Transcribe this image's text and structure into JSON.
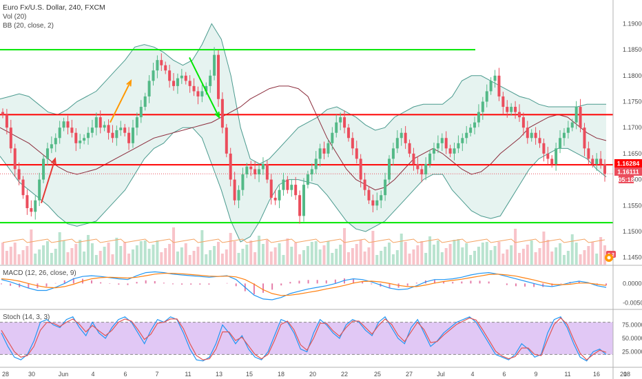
{
  "header": {
    "title": "Euro Fx/U.S. Dollar, 240, FXCM",
    "vol": "Vol (20)",
    "bb": "BB (20, close, 2)"
  },
  "macd_label": "MACD (12, 26, close, 9)",
  "stoch_label": "Stoch (14, 3, 3)",
  "price_tags": {
    "upper": "1.16284",
    "lower": "1.16111",
    "countdown": "05:18",
    "volume": "5.2"
  },
  "colors": {
    "up": "#53b987",
    "down": "#eb4d5c",
    "bb": "#4a9a8e",
    "bb_fill": "#e3f2ee",
    "basis": "#8b2c3c",
    "hline_red": "#ff0000",
    "hline_green": "#00e600",
    "macd": "#2196f3",
    "signal": "#ff7f0e",
    "stoch_fill": "#e1c8f5",
    "stoch_k": "#2196f3",
    "stoch_d": "#e05555"
  },
  "chart_data": [
    {
      "type": "candlestick",
      "title": "Euro Fx/U.S. Dollar, 240, FXCM",
      "y_ticks": [
        "1.19000",
        "1.18500",
        "1.18000",
        "1.17500",
        "1.17000",
        "1.16500",
        "1.16000",
        "1.15500",
        "1.15000",
        "1.14500"
      ],
      "ylim": [
        1.1435,
        1.1935
      ],
      "x_ticks": [
        "28",
        "30",
        "Jun",
        "4",
        "6",
        "7",
        "11",
        "13",
        "15",
        "18",
        "20",
        "22",
        "25",
        "27",
        "Jul",
        "4",
        "6",
        "9",
        "11",
        "16",
        "18",
        "20"
      ],
      "close": [
        1.1725,
        1.17,
        1.166,
        1.162,
        1.16,
        1.157,
        1.1545,
        1.1538,
        1.156,
        1.16,
        1.164,
        1.166,
        1.1668,
        1.168,
        1.17,
        1.1712,
        1.17,
        1.169,
        1.167,
        1.1675,
        1.168,
        1.169,
        1.17,
        1.172,
        1.17,
        1.1705,
        1.169,
        1.168,
        1.1695,
        1.17,
        1.169,
        1.167,
        1.17,
        1.172,
        1.174,
        1.176,
        1.179,
        1.181,
        1.183,
        1.182,
        1.181,
        1.179,
        1.178,
        1.1795,
        1.18,
        1.179,
        1.178,
        1.177,
        1.176,
        1.177,
        1.178,
        1.18,
        1.184,
        1.1755,
        1.17,
        1.165,
        1.16,
        1.156,
        1.158,
        1.161,
        1.1625,
        1.162,
        1.161,
        1.162,
        1.163,
        1.16,
        1.1565,
        1.156,
        1.158,
        1.16,
        1.158,
        1.159,
        1.157,
        1.153,
        1.159,
        1.161,
        1.162,
        1.164,
        1.166,
        1.165,
        1.167,
        1.169,
        1.171,
        1.172,
        1.17,
        1.168,
        1.166,
        1.164,
        1.16,
        1.158,
        1.156,
        1.155,
        1.156,
        1.157,
        1.16,
        1.164,
        1.166,
        1.168,
        1.169,
        1.167,
        1.165,
        1.163,
        1.162,
        1.161,
        1.163,
        1.165,
        1.166,
        1.167,
        1.168,
        1.166,
        1.165,
        1.166,
        1.167,
        1.168,
        1.169,
        1.17,
        1.171,
        1.173,
        1.175,
        1.177,
        1.179,
        1.18,
        1.176,
        1.174,
        1.173,
        1.174,
        1.173,
        1.172,
        1.17,
        1.168,
        1.169,
        1.168,
        1.167,
        1.165,
        1.164,
        1.163,
        1.166,
        1.168,
        1.169,
        1.17,
        1.171,
        1.174,
        1.17,
        1.166,
        1.164,
        1.163,
        1.164,
        1.163,
        1.1611
      ],
      "bb_mid": [
        1.17,
        1.169,
        1.168,
        1.167,
        1.1655,
        1.164,
        1.1625,
        1.1615,
        1.161,
        1.1615,
        1.162,
        1.163,
        1.164,
        1.165,
        1.166,
        1.167,
        1.168,
        1.1685,
        1.169,
        1.1695,
        1.17,
        1.1705,
        1.171,
        1.172,
        1.173,
        1.174,
        1.1755,
        1.1765,
        1.1775,
        1.178,
        1.178,
        1.1775,
        1.176,
        1.172,
        1.168,
        1.165,
        1.162,
        1.16,
        1.159,
        1.158,
        1.1585,
        1.16,
        1.162,
        1.164,
        1.165,
        1.166,
        1.165,
        1.1635,
        1.162,
        1.161,
        1.1615,
        1.163,
        1.165,
        1.1665,
        1.168,
        1.17,
        1.171,
        1.172,
        1.1725,
        1.172,
        1.1705,
        1.169,
        1.168,
        1.1675
      ],
      "bb_upper": [
        1.1755,
        1.176,
        1.1765,
        1.176,
        1.1745,
        1.173,
        1.1725,
        1.1735,
        1.175,
        1.176,
        1.177,
        1.179,
        1.181,
        1.183,
        1.1855,
        1.186,
        1.1855,
        1.1845,
        1.183,
        1.182,
        1.183,
        1.186,
        1.19,
        1.187,
        1.18,
        1.17,
        1.164,
        1.163,
        1.164,
        1.166,
        1.168,
        1.17,
        1.171,
        1.172,
        1.1735,
        1.174,
        1.173,
        1.172,
        1.1705,
        1.1695,
        1.17,
        1.172,
        1.173,
        1.174,
        1.1745,
        1.1745,
        1.1745,
        1.176,
        1.179,
        1.18,
        1.18,
        1.179,
        1.178,
        1.177,
        1.176,
        1.1755,
        1.1745,
        1.174,
        1.174,
        1.174,
        1.174,
        1.1745,
        1.1745,
        1.1745
      ],
      "bb_lower": [
        1.1645,
        1.162,
        1.1595,
        1.158,
        1.1565,
        1.155,
        1.153,
        1.1515,
        1.151,
        1.1515,
        1.152,
        1.154,
        1.156,
        1.158,
        1.161,
        1.164,
        1.166,
        1.167,
        1.169,
        1.17,
        1.17,
        1.168,
        1.163,
        1.158,
        1.152,
        1.148,
        1.149,
        1.152,
        1.156,
        1.159,
        1.16,
        1.16,
        1.1595,
        1.159,
        1.157,
        1.1545,
        1.152,
        1.1505,
        1.15,
        1.151,
        1.152,
        1.154,
        1.156,
        1.158,
        1.16,
        1.161,
        1.161,
        1.158,
        1.156,
        1.154,
        1.153,
        1.1525,
        1.153,
        1.156,
        1.159,
        1.162,
        1.164,
        1.165,
        1.166,
        1.166,
        1.165,
        1.164,
        1.162,
        1.1605
      ],
      "horizontal_levels": [
        {
          "value": 1.185,
          "color": "green"
        },
        {
          "value": 1.1725,
          "color": "red"
        },
        {
          "value": 1.16284,
          "color": "red"
        },
        {
          "value": 1.1517,
          "color": "green"
        }
      ],
      "arrows": [
        {
          "from": [
            1.1555,
            1.164
          ],
          "color": "red"
        },
        {
          "from": [
            1.171,
            1.179
          ],
          "color": "orange"
        },
        {
          "from": [
            1.1835,
            1.172
          ],
          "color": "green"
        }
      ]
    },
    {
      "type": "bar",
      "title": "Vol (20)",
      "note": "volume histogram with moving average"
    },
    {
      "type": "line",
      "title": "MACD (12, 26, close, 9)",
      "y_ticks": [
        "0.0000",
        "-0.0050"
      ],
      "ylim": [
        -0.0065,
        0.0045
      ],
      "macd": [
        0.001,
        0.0004,
        -0.0004,
        -0.0012,
        -0.0018,
        -0.0018,
        -0.001,
        0.0,
        0.0012,
        0.0018,
        0.002,
        0.0018,
        0.0015,
        0.0012,
        0.001,
        0.002,
        0.0028,
        0.003,
        0.0028,
        0.0024,
        0.0022,
        0.002,
        0.0018,
        0.0016,
        0.0018,
        0.002,
        0.001,
        -0.001,
        -0.003,
        -0.004,
        -0.0042,
        -0.0036,
        -0.0026,
        -0.002,
        -0.0014,
        -0.001,
        -0.0006,
        0.0,
        0.0008,
        0.0012,
        0.001,
        0.0004,
        -0.0004,
        -0.0012,
        -0.0016,
        -0.0014,
        -0.0006,
        0.0004,
        0.001,
        0.001,
        0.0012,
        0.0016,
        0.0022,
        0.0026,
        0.0028,
        0.0024,
        0.0018,
        0.0012,
        0.0006,
        0.0,
        -0.0006,
        -0.0008,
        -0.0004,
        0.0002,
        0.0006,
        0.0002,
        -0.0006,
        -0.001
      ],
      "signal": [
        0.0012,
        0.001,
        0.0006,
        0.0,
        -0.0006,
        -0.001,
        -0.0011,
        -0.0008,
        -0.0002,
        0.0006,
        0.0012,
        0.0015,
        0.0016,
        0.0015,
        0.0014,
        0.0016,
        0.002,
        0.0024,
        0.0026,
        0.0026,
        0.0025,
        0.0023,
        0.0021,
        0.0019,
        0.0018,
        0.0019,
        0.0017,
        0.001,
        -0.0002,
        -0.0016,
        -0.0026,
        -0.0031,
        -0.003,
        -0.0027,
        -0.0023,
        -0.0019,
        -0.0014,
        -0.001,
        -0.0005,
        0.0001,
        0.0005,
        0.0006,
        0.0004,
        0.0,
        -0.0005,
        -0.0008,
        -0.0008,
        -0.0004,
        0.0001,
        0.0005,
        0.0008,
        0.0011,
        0.0015,
        0.0019,
        0.0023,
        0.0024,
        0.0022,
        0.0019,
        0.0014,
        0.0009,
        0.0003,
        -0.0002,
        -0.0003,
        -0.0002,
        0.0001,
        0.0001,
        -0.0002,
        -0.0005
      ]
    },
    {
      "type": "line",
      "title": "Stoch (14, 3, 3)",
      "y_ticks": [
        "75.0000",
        "50.0000",
        "25.0000"
      ],
      "ylim": [
        0,
        100
      ],
      "k": [
        60,
        35,
        15,
        10,
        20,
        45,
        80,
        85,
        75,
        70,
        85,
        90,
        70,
        55,
        80,
        60,
        50,
        70,
        85,
        90,
        80,
        60,
        40,
        65,
        85,
        80,
        90,
        85,
        60,
        30,
        10,
        8,
        15,
        40,
        75,
        60,
        40,
        55,
        30,
        15,
        10,
        25,
        55,
        85,
        80,
        60,
        30,
        25,
        60,
        85,
        75,
        60,
        50,
        75,
        85,
        80,
        65,
        55,
        80,
        90,
        70,
        50,
        40,
        70,
        85,
        60,
        35,
        45,
        60,
        70,
        80,
        85,
        90,
        80,
        60,
        40,
        20,
        15,
        10,
        20,
        40,
        30,
        15,
        20,
        60,
        85,
        90,
        70,
        40,
        15,
        8,
        25,
        30,
        20
      ],
      "d": [
        65,
        45,
        25,
        15,
        18,
        35,
        65,
        80,
        78,
        72,
        80,
        86,
        76,
        62,
        74,
        64,
        55,
        65,
        80,
        86,
        82,
        66,
        48,
        58,
        78,
        80,
        86,
        86,
        68,
        40,
        18,
        10,
        12,
        30,
        62,
        62,
        46,
        52,
        36,
        20,
        12,
        20,
        46,
        76,
        82,
        66,
        38,
        28,
        50,
        78,
        78,
        64,
        54,
        70,
        82,
        82,
        70,
        58,
        74,
        86,
        76,
        56,
        44,
        62,
        80,
        66,
        42,
        44,
        56,
        66,
        76,
        82,
        88,
        84,
        66,
        46,
        26,
        17,
        12,
        16,
        32,
        32,
        20,
        18,
        48,
        76,
        88,
        76,
        48,
        22,
        10,
        20,
        28,
        24
      ]
    }
  ]
}
